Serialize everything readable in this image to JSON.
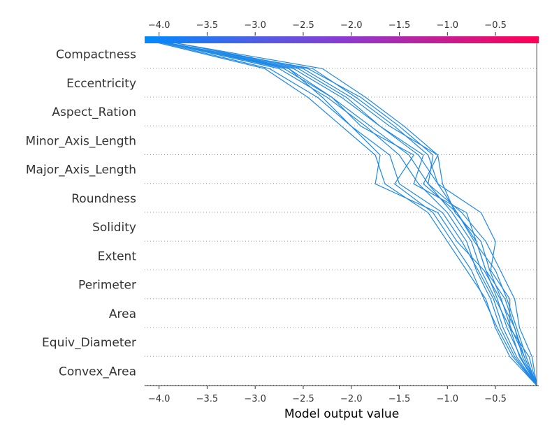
{
  "chart_data": {
    "type": "line",
    "xlabel": "Model output value",
    "xlim": [
      -4.15,
      -0.05
    ],
    "xticks": [
      -4.0,
      -3.5,
      -3.0,
      -2.5,
      -2.0,
      -1.5,
      -1.0,
      -0.5
    ],
    "xtick_labels": [
      "−4.0",
      "−3.5",
      "−3.0",
      "−2.5",
      "−2.0",
      "−1.5",
      "−1.0",
      "−0.5"
    ],
    "base_value": -0.07,
    "features": [
      "Convex_Area",
      "Equiv_Diameter",
      "Area",
      "Perimeter",
      "Extent",
      "Solidity",
      "Roundness",
      "Major_Axis_Length",
      "Minor_Axis_Length",
      "Aspect_Ration",
      "Eccentricity",
      "Compactness"
    ],
    "colormap": [
      "#008bfb",
      "#ff0052"
    ],
    "grid": "dotted-horizontal",
    "series": [
      {
        "values": [
          -0.07,
          -0.2,
          -0.3,
          -0.4,
          -0.6,
          -0.7,
          -0.9,
          -1.1,
          -1.3,
          -1.7,
          -2.1,
          -2.6,
          -4.1
        ]
      },
      {
        "values": [
          -0.07,
          -0.25,
          -0.35,
          -0.5,
          -0.65,
          -0.75,
          -0.95,
          -1.2,
          -1.4,
          -1.8,
          -2.2,
          -2.7,
          -4.05
        ]
      },
      {
        "values": [
          -0.07,
          -0.15,
          -0.35,
          -0.35,
          -0.55,
          -0.5,
          -0.65,
          -1.1,
          -1.2,
          -1.55,
          -1.95,
          -2.4,
          -4.12
        ]
      },
      {
        "values": [
          -0.07,
          -0.3,
          -0.45,
          -0.55,
          -0.7,
          -0.8,
          -1.0,
          -1.3,
          -1.5,
          -1.85,
          -2.25,
          -2.75,
          -4.08
        ]
      },
      {
        "values": [
          -0.07,
          -0.22,
          -0.3,
          -0.45,
          -0.62,
          -0.9,
          -1.1,
          -1.75,
          -1.7,
          -2.0,
          -2.35,
          -2.85,
          -4.1
        ]
      },
      {
        "values": [
          -0.07,
          -0.35,
          -0.5,
          -0.6,
          -0.8,
          -1.0,
          -1.2,
          -1.65,
          -1.75,
          -2.1,
          -2.45,
          -2.9,
          -4.14
        ]
      },
      {
        "values": [
          -0.07,
          -0.18,
          -0.28,
          -0.38,
          -0.5,
          -0.72,
          -0.9,
          -1.25,
          -1.1,
          -1.45,
          -1.85,
          -2.3,
          -4.02
        ]
      },
      {
        "values": [
          -0.07,
          -0.28,
          -0.42,
          -0.52,
          -0.68,
          -0.85,
          -1.05,
          -1.5,
          -1.6,
          -2.0,
          -2.3,
          -2.65,
          -4.06
        ]
      },
      {
        "values": [
          -0.07,
          -0.12,
          -0.25,
          -0.3,
          -0.45,
          -0.6,
          -0.85,
          -1.2,
          -1.15,
          -1.5,
          -1.9,
          -2.45,
          -4.0
        ]
      },
      {
        "values": [
          -0.07,
          -0.24,
          -0.38,
          -0.48,
          -0.6,
          -0.7,
          -0.8,
          -1.35,
          -1.25,
          -1.7,
          -2.05,
          -2.55,
          -4.11
        ]
      },
      {
        "values": [
          -0.07,
          -0.32,
          -0.48,
          -0.62,
          -0.75,
          -0.95,
          -1.15,
          -1.55,
          -1.35,
          -1.9,
          -2.2,
          -2.65,
          -4.09
        ]
      },
      {
        "values": [
          -0.07,
          -0.2,
          -0.34,
          -0.44,
          -0.56,
          -0.65,
          -0.92,
          -1.05,
          -1.1,
          -1.6,
          -2.0,
          -2.5,
          -4.07
        ]
      }
    ]
  }
}
